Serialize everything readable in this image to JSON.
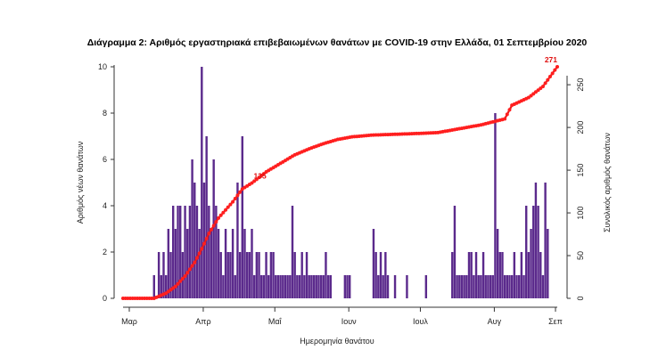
{
  "chart_data": {
    "type": "bar+line",
    "title": "Διάγραμμα 2: Αριθμός εργαστηριακά επιβεβαιωμένων θανάτων με COVID-19 στην Ελλάδα, 01 Σεπτεμβρίου 2020",
    "xlabel": "Ημερομηνία θανάτου",
    "ylabel_left": "Αριθμός νέων θανάτων",
    "ylabel_right": "Συνολικός αριθμός θανάτων",
    "ylim_left": [
      0,
      10
    ],
    "ylim_right": [
      0,
      271
    ],
    "yticks_left": [
      "0",
      "2",
      "4",
      "6",
      "8",
      "10"
    ],
    "yticks_right": [
      "0",
      "50",
      "100",
      "150",
      "200",
      "250"
    ],
    "xticks": [
      "Μαρ",
      "Απρ",
      "Μαΐ",
      "Ιουν",
      "Ιουλ",
      "Αυγ",
      "Σεπ"
    ],
    "x_range_days": [
      0,
      182
    ],
    "series": [
      {
        "kind": "bar",
        "color": "#5b2a8c",
        "values": [
          0,
          0,
          0,
          0,
          0,
          0,
          0,
          0,
          0,
          0,
          0,
          0,
          0,
          1,
          0,
          2,
          1,
          2,
          1,
          3,
          2,
          4,
          3,
          4,
          4,
          2,
          4,
          3,
          4,
          6,
          5,
          4,
          3,
          10,
          5,
          7,
          4,
          3,
          6,
          4,
          3,
          2,
          1,
          3,
          2,
          2,
          3,
          1,
          5,
          2,
          7,
          3,
          2,
          2,
          3,
          1,
          2,
          2,
          1,
          1,
          2,
          1,
          2,
          2,
          1,
          1,
          1,
          1,
          1,
          1,
          1,
          4,
          2,
          1,
          1,
          2,
          1,
          2,
          1,
          1,
          1,
          1,
          1,
          1,
          1,
          2,
          1,
          1,
          0,
          0,
          0,
          0,
          0,
          1,
          1,
          1,
          0,
          0,
          0,
          0,
          0,
          0,
          0,
          0,
          0,
          3,
          2,
          1,
          2,
          1,
          2,
          1,
          0,
          0,
          1,
          0,
          0,
          0,
          0,
          1,
          0,
          0,
          0,
          0,
          0,
          0,
          0,
          1,
          0,
          0,
          0,
          0,
          0,
          0,
          0,
          0,
          0,
          0,
          2,
          4,
          1,
          1,
          1,
          1,
          1,
          2,
          2,
          1,
          2,
          1,
          1,
          2,
          1,
          1,
          1,
          1,
          8,
          3,
          2,
          2,
          1,
          1,
          1,
          1,
          2,
          1,
          1,
          2,
          1,
          4,
          2,
          3,
          4,
          5,
          4,
          2,
          1,
          5,
          3
        ]
      },
      {
        "kind": "line",
        "color": "#e51c1c",
        "name": "",
        "anchors": [
          [
            0,
            0
          ],
          [
            13,
            0
          ],
          [
            18,
            6
          ],
          [
            22,
            14
          ],
          [
            26,
            26
          ],
          [
            30,
            42
          ],
          [
            33,
            58
          ],
          [
            36,
            76
          ],
          [
            40,
            94
          ],
          [
            46,
            113
          ],
          [
            50,
            128
          ],
          [
            54,
            135
          ],
          [
            60,
            148
          ],
          [
            66,
            158
          ],
          [
            72,
            168
          ],
          [
            78,
            175
          ],
          [
            84,
            181
          ],
          [
            90,
            186
          ],
          [
            96,
            189
          ],
          [
            104,
            191
          ],
          [
            114,
            192
          ],
          [
            124,
            193
          ],
          [
            132,
            194
          ],
          [
            140,
            198
          ],
          [
            150,
            203
          ],
          [
            160,
            210
          ],
          [
            163,
            226
          ],
          [
            170,
            235
          ],
          [
            176,
            248
          ],
          [
            182,
            271
          ]
        ]
      }
    ],
    "annotations": [
      {
        "text": "135",
        "x": 54,
        "y": 135
      },
      {
        "text": "271",
        "x": 182,
        "y": 271
      }
    ]
  }
}
